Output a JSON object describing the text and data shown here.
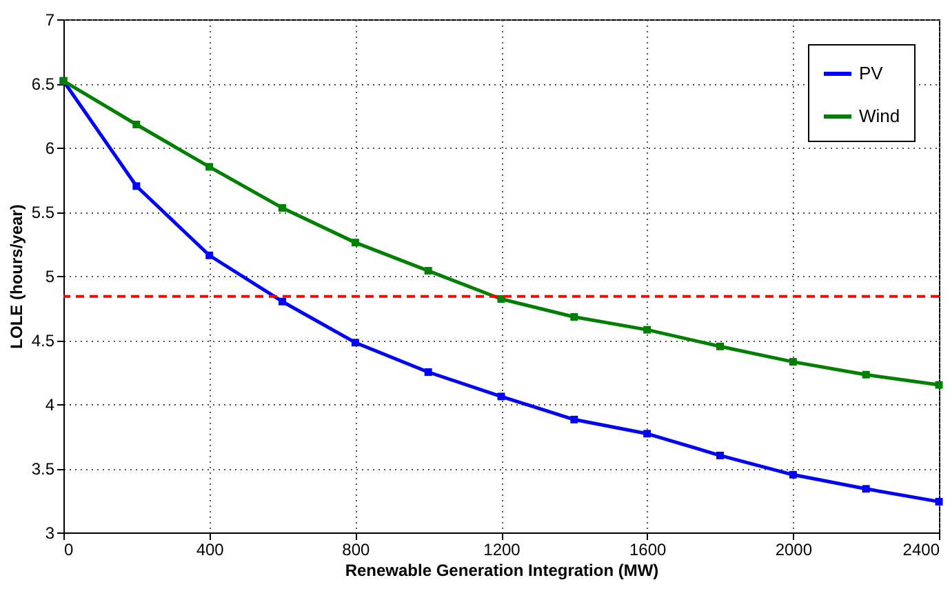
{
  "chart_data": {
    "type": "line",
    "xlabel": "Renewable Generation Integration (MW)",
    "ylabel": "LOLE (hours/year)",
    "x": [
      0,
      200,
      400,
      600,
      800,
      1000,
      1200,
      1400,
      1600,
      1800,
      2000,
      2200,
      2400
    ],
    "series": [
      {
        "name": "PV",
        "color": "#0000ff",
        "values": [
          6.52,
          5.7,
          5.16,
          4.8,
          4.48,
          4.25,
          4.06,
          3.88,
          3.77,
          3.6,
          3.45,
          3.34,
          3.24
        ]
      },
      {
        "name": "Wind",
        "color": "#008000",
        "values": [
          6.52,
          6.18,
          5.85,
          5.53,
          5.26,
          5.04,
          4.82,
          4.68,
          4.58,
          4.45,
          4.33,
          4.23,
          4.15
        ]
      }
    ],
    "xlim": [
      0,
      2400
    ],
    "xticks": [
      0,
      400,
      800,
      1200,
      1600,
      2000,
      2400
    ],
    "ylim": [
      3,
      7
    ],
    "yticks": [
      3,
      3.5,
      4,
      4.5,
      5,
      5.5,
      6,
      6.5,
      7
    ],
    "ref_lines": [
      {
        "axis": "y",
        "value": 4.84,
        "color": "#ff0000",
        "line_style": "dashed"
      }
    ],
    "grid": true,
    "legend": "top right",
    "marker": "square",
    "line_style": "solid"
  }
}
